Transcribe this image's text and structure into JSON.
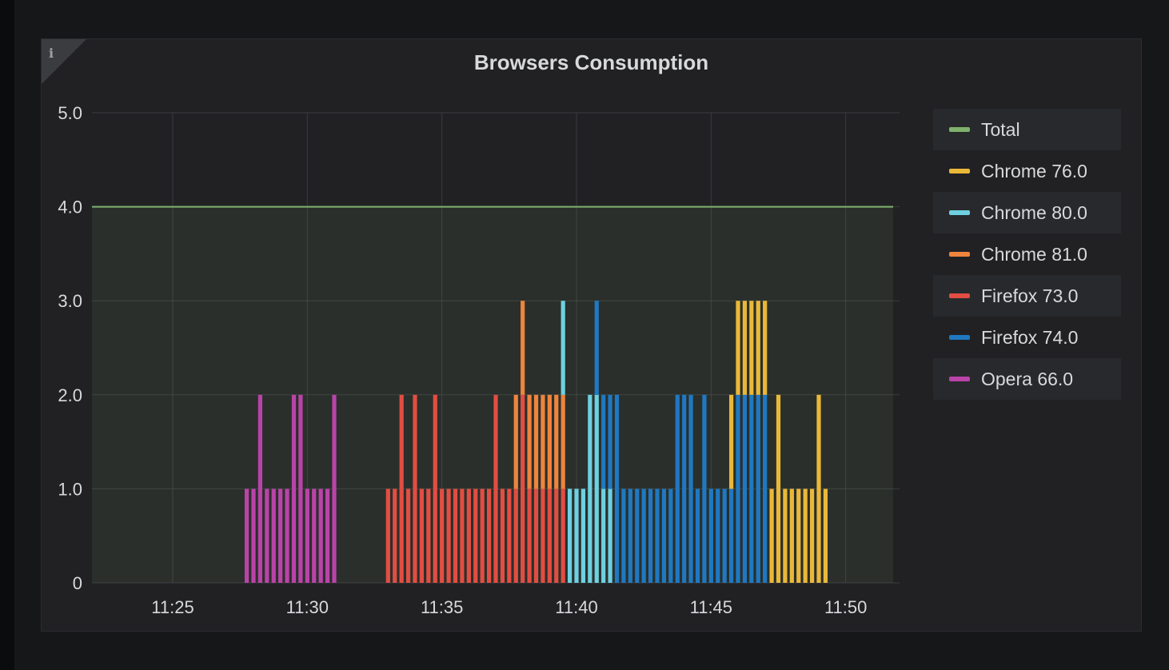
{
  "panel": {
    "title": "Browsers Consumption",
    "info_icon": "info-icon",
    "info_glyph": "i"
  },
  "chart_data": {
    "type": "bar",
    "title": "Browsers Consumption",
    "stacked": true,
    "xlabel": "",
    "ylabel": "",
    "xlim": [
      "11:22",
      "11:52"
    ],
    "ylim": [
      0,
      5
    ],
    "grid": true,
    "legend_placement": "right",
    "x_ticks": [
      "11:25",
      "11:30",
      "11:35",
      "11:40",
      "11:45",
      "11:50"
    ],
    "y_ticks": [
      "0",
      "1.0",
      "2.0",
      "3.0",
      "4.0",
      "5.0"
    ],
    "bar_interval_seconds": 15,
    "colors": {
      "Total": "#7eb26d",
      "Chrome 76.0": "#eab839",
      "Chrome 80.0": "#6ed0e0",
      "Chrome 81.0": "#ef843c",
      "Firefox 73.0": "#e24d42",
      "Firefox 74.0": "#1f78c1",
      "Opera 66.0": "#ba43a9"
    },
    "series": [
      {
        "name": "Total",
        "type": "line",
        "area": true,
        "x": [
          "11:22",
          "11:52"
        ],
        "values": [
          4.0,
          4.0
        ]
      },
      {
        "name": "Opera 66.0",
        "points": [
          [
            "11:27:45",
            1
          ],
          [
            "11:28:00",
            1
          ],
          [
            "11:28:15",
            2
          ],
          [
            "11:28:30",
            1
          ],
          [
            "11:28:45",
            1
          ],
          [
            "11:29:00",
            1
          ],
          [
            "11:29:15",
            1
          ],
          [
            "11:29:30",
            2
          ],
          [
            "11:29:45",
            2
          ],
          [
            "11:30:00",
            1
          ],
          [
            "11:30:15",
            1
          ],
          [
            "11:30:30",
            1
          ],
          [
            "11:30:45",
            1
          ],
          [
            "11:31:00",
            2
          ]
        ]
      },
      {
        "name": "Firefox 73.0",
        "points": [
          [
            "11:33:00",
            1
          ],
          [
            "11:33:15",
            1
          ],
          [
            "11:33:30",
            2
          ],
          [
            "11:33:45",
            1
          ],
          [
            "11:34:00",
            2
          ],
          [
            "11:34:15",
            1
          ],
          [
            "11:34:30",
            1
          ],
          [
            "11:34:45",
            2
          ],
          [
            "11:35:00",
            1
          ],
          [
            "11:35:15",
            1
          ],
          [
            "11:35:30",
            1
          ],
          [
            "11:35:45",
            1
          ],
          [
            "11:36:00",
            1
          ],
          [
            "11:36:15",
            1
          ],
          [
            "11:36:30",
            1
          ],
          [
            "11:36:45",
            1
          ],
          [
            "11:37:00",
            2
          ],
          [
            "11:37:15",
            1
          ],
          [
            "11:37:30",
            1
          ],
          [
            "11:37:45",
            1
          ],
          [
            "11:38:00",
            2
          ],
          [
            "11:38:15",
            1
          ],
          [
            "11:38:30",
            1
          ],
          [
            "11:38:45",
            1
          ],
          [
            "11:39:00",
            1
          ],
          [
            "11:39:15",
            1
          ],
          [
            "11:39:30",
            1
          ]
        ]
      },
      {
        "name": "Chrome 81.0",
        "points": [
          [
            "11:37:45",
            1
          ],
          [
            "11:38:00",
            1
          ],
          [
            "11:38:15",
            1
          ],
          [
            "11:38:30",
            1
          ],
          [
            "11:38:45",
            1
          ],
          [
            "11:39:00",
            1
          ],
          [
            "11:39:15",
            1
          ],
          [
            "11:39:30",
            1
          ]
        ]
      },
      {
        "name": "Chrome 80.0",
        "points": [
          [
            "11:39:30",
            1
          ],
          [
            "11:39:45",
            1
          ],
          [
            "11:40:00",
            1
          ],
          [
            "11:40:15",
            1
          ],
          [
            "11:40:30",
            2
          ],
          [
            "11:40:45",
            2
          ],
          [
            "11:41:00",
            1
          ],
          [
            "11:41:15",
            1
          ]
        ]
      },
      {
        "name": "Firefox 74.0",
        "points": [
          [
            "11:40:45",
            1
          ],
          [
            "11:41:00",
            1
          ],
          [
            "11:41:15",
            1
          ],
          [
            "11:41:30",
            2
          ],
          [
            "11:41:45",
            1
          ],
          [
            "11:42:00",
            1
          ],
          [
            "11:42:15",
            1
          ],
          [
            "11:42:30",
            1
          ],
          [
            "11:42:45",
            1
          ],
          [
            "11:43:00",
            1
          ],
          [
            "11:43:15",
            1
          ],
          [
            "11:43:30",
            1
          ],
          [
            "11:43:45",
            2
          ],
          [
            "11:44:00",
            2
          ],
          [
            "11:44:15",
            2
          ],
          [
            "11:44:30",
            1
          ],
          [
            "11:44:45",
            2
          ],
          [
            "11:45:00",
            1
          ],
          [
            "11:45:15",
            1
          ],
          [
            "11:45:30",
            1
          ],
          [
            "11:45:45",
            1
          ],
          [
            "11:46:00",
            2
          ],
          [
            "11:46:15",
            2
          ],
          [
            "11:46:30",
            2
          ],
          [
            "11:46:45",
            2
          ],
          [
            "11:47:00",
            2
          ]
        ]
      },
      {
        "name": "Chrome 76.0",
        "points": [
          [
            "11:45:45",
            1
          ],
          [
            "11:46:00",
            1
          ],
          [
            "11:46:15",
            1
          ],
          [
            "11:46:30",
            1
          ],
          [
            "11:46:45",
            1
          ],
          [
            "11:47:00",
            1
          ],
          [
            "11:47:15",
            1
          ],
          [
            "11:47:30",
            2
          ],
          [
            "11:47:45",
            1
          ],
          [
            "11:48:00",
            1
          ],
          [
            "11:48:15",
            1
          ],
          [
            "11:48:30",
            1
          ],
          [
            "11:48:45",
            1
          ],
          [
            "11:49:00",
            2
          ],
          [
            "11:49:15",
            1
          ]
        ]
      }
    ],
    "legend": [
      "Total",
      "Chrome 76.0",
      "Chrome 80.0",
      "Chrome 81.0",
      "Firefox 73.0",
      "Firefox 74.0",
      "Opera 66.0"
    ]
  }
}
